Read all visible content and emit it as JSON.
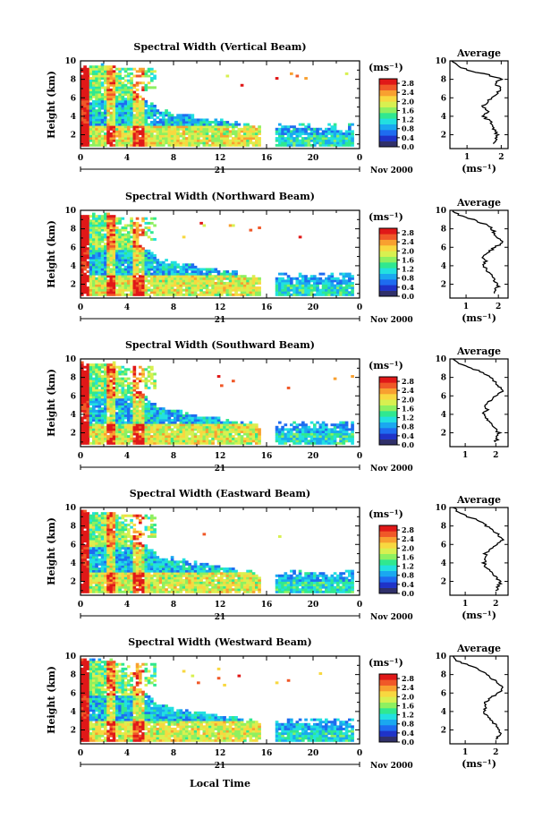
{
  "chart_data": [
    {
      "type": "heatmap",
      "title": "Spectral Width (Vertical Beam)",
      "ylabel": "Height (km)",
      "xticks": [
        "0",
        "4",
        "8",
        "12",
        "16",
        "20",
        "0"
      ],
      "yticks": [
        "2",
        "4",
        "6",
        "8",
        "10"
      ],
      "xlim": [
        0,
        24
      ],
      "ylim": [
        0.5,
        10
      ],
      "date_day": "21",
      "date_month": "Nov 2000",
      "colorbar": {
        "unit": "(ms⁻¹)",
        "ticks": [
          "2.8",
          "2.4",
          "2.0",
          "1.6",
          "1.2",
          "0.8",
          "0.4",
          "0.0"
        ],
        "range": [
          0,
          3.0
        ]
      },
      "avg_panel": {
        "title": "Average",
        "xlabel": "(ms⁻¹)",
        "xticks": [
          "1",
          "2"
        ],
        "xlim": [
          0.5,
          2.2
        ],
        "profile": [
          [
            1.8,
            1.0
          ],
          [
            1.85,
            1.5
          ],
          [
            1.9,
            2.0
          ],
          [
            1.8,
            2.5
          ],
          [
            1.75,
            3.0
          ],
          [
            1.65,
            3.5
          ],
          [
            1.5,
            4.0
          ],
          [
            1.6,
            4.5
          ],
          [
            1.45,
            5.0
          ],
          [
            1.6,
            5.5
          ],
          [
            1.7,
            6.0
          ],
          [
            1.9,
            6.5
          ],
          [
            2.0,
            7.0
          ],
          [
            1.8,
            7.5
          ],
          [
            2.0,
            8.0
          ],
          [
            1.6,
            8.5
          ],
          [
            1.0,
            9.0
          ],
          [
            0.7,
            9.5
          ],
          [
            0.55,
            10.0
          ]
        ]
      },
      "data_hours": [
        0,
        23.5
      ],
      "gap_hours": [
        15.4,
        16.7
      ]
    },
    {
      "type": "heatmap",
      "title": "Spectral Width (Northward Beam)",
      "ylabel": "Height (km)",
      "xticks": [
        "0",
        "4",
        "8",
        "12",
        "16",
        "20",
        "0"
      ],
      "yticks": [
        "2",
        "4",
        "6",
        "8",
        "10"
      ],
      "xlim": [
        0,
        24
      ],
      "ylim": [
        0.5,
        10
      ],
      "date_day": "21",
      "date_month": "Nov 2000",
      "colorbar": {
        "unit": "(ms⁻¹)",
        "ticks": [
          "2.8",
          "2.4",
          "2.0",
          "1.6",
          "1.2",
          "0.8",
          "0.4",
          "0.0"
        ],
        "range": [
          0,
          3.0
        ]
      },
      "avg_panel": {
        "title": "Average",
        "xlabel": "(ms⁻¹)",
        "xticks": [
          "1",
          "2"
        ],
        "xlim": [
          0.5,
          2.3
        ],
        "profile": [
          [
            1.9,
            1.0
          ],
          [
            1.95,
            1.5
          ],
          [
            2.0,
            2.0
          ],
          [
            1.85,
            2.5
          ],
          [
            1.8,
            3.0
          ],
          [
            1.65,
            3.5
          ],
          [
            1.55,
            4.0
          ],
          [
            1.6,
            4.5
          ],
          [
            1.5,
            5.0
          ],
          [
            1.7,
            5.5
          ],
          [
            1.9,
            6.0
          ],
          [
            2.1,
            6.5
          ],
          [
            2.0,
            7.0
          ],
          [
            1.9,
            7.5
          ],
          [
            1.8,
            8.0
          ],
          [
            1.6,
            8.5
          ],
          [
            1.2,
            9.0
          ],
          [
            0.8,
            9.5
          ],
          [
            0.6,
            10.0
          ]
        ]
      },
      "data_hours": [
        0,
        23.5
      ],
      "gap_hours": [
        15.4,
        16.7
      ]
    },
    {
      "type": "heatmap",
      "title": "Spectral Width (Southward Beam)",
      "ylabel": "Height (km)",
      "xticks": [
        "0",
        "4",
        "8",
        "12",
        "16",
        "20",
        "0"
      ],
      "yticks": [
        "2",
        "4",
        "6",
        "8",
        "10"
      ],
      "xlim": [
        0,
        24
      ],
      "ylim": [
        0.5,
        10
      ],
      "date_day": "21",
      "date_month": "Nov 2000",
      "colorbar": {
        "unit": "(ms⁻¹)",
        "ticks": [
          "2.8",
          "2.4",
          "2.0",
          "1.6",
          "1.2",
          "0.8",
          "0.4",
          "0.0"
        ],
        "range": [
          0,
          3.0
        ]
      },
      "avg_panel": {
        "title": "Average",
        "xlabel": "",
        "xticks": [
          "1",
          "2"
        ],
        "xlim": [
          0.5,
          2.4
        ],
        "profile": [
          [
            2.0,
            1.0
          ],
          [
            2.05,
            1.5
          ],
          [
            2.1,
            2.0
          ],
          [
            1.95,
            2.5
          ],
          [
            1.85,
            3.0
          ],
          [
            1.7,
            3.5
          ],
          [
            1.6,
            4.0
          ],
          [
            1.7,
            4.5
          ],
          [
            1.6,
            5.0
          ],
          [
            1.8,
            5.5
          ],
          [
            2.0,
            6.0
          ],
          [
            2.2,
            6.5
          ],
          [
            2.1,
            7.0
          ],
          [
            1.95,
            7.5
          ],
          [
            1.8,
            8.0
          ],
          [
            1.6,
            8.5
          ],
          [
            1.2,
            9.0
          ],
          [
            0.8,
            9.5
          ],
          [
            0.6,
            10.0
          ]
        ]
      },
      "data_hours": [
        0,
        23.5
      ],
      "gap_hours": [
        15.4,
        16.7
      ]
    },
    {
      "type": "heatmap",
      "title": "Spectral Width (Eastward Beam)",
      "ylabel": "Height (km)",
      "xticks": [
        "0",
        "4",
        "8",
        "12",
        "16",
        "20",
        "0"
      ],
      "yticks": [
        "2",
        "4",
        "6",
        "8",
        "10"
      ],
      "xlim": [
        0,
        24
      ],
      "ylim": [
        0.5,
        10
      ],
      "date_day": "21",
      "date_month": "Nov 2000",
      "colorbar": {
        "unit": "(ms⁻¹)",
        "ticks": [
          "2.8",
          "2.4",
          "2.0",
          "1.6",
          "1.2",
          "0.8",
          "0.4",
          "0.0"
        ],
        "range": [
          0,
          3.0
        ]
      },
      "avg_panel": {
        "title": "Average",
        "xlabel": "(ms⁻¹)",
        "xticks": [
          "1",
          "2"
        ],
        "xlim": [
          0.5,
          2.4
        ],
        "profile": [
          [
            2.0,
            1.0
          ],
          [
            2.1,
            1.5
          ],
          [
            2.15,
            2.0
          ],
          [
            2.0,
            2.5
          ],
          [
            1.85,
            3.0
          ],
          [
            1.7,
            3.5
          ],
          [
            1.6,
            4.0
          ],
          [
            1.7,
            4.5
          ],
          [
            1.65,
            5.0
          ],
          [
            1.85,
            5.5
          ],
          [
            2.05,
            6.0
          ],
          [
            2.2,
            6.5
          ],
          [
            2.1,
            7.0
          ],
          [
            1.9,
            7.5
          ],
          [
            1.7,
            8.0
          ],
          [
            1.5,
            8.5
          ],
          [
            1.1,
            9.0
          ],
          [
            0.75,
            9.5
          ],
          [
            0.6,
            10.0
          ]
        ]
      },
      "data_hours": [
        0,
        23.5
      ],
      "gap_hours": [
        15.4,
        16.7
      ]
    },
    {
      "type": "heatmap",
      "title": "Spectral Width (Westward Beam)",
      "ylabel": "Height (km)",
      "xticks": [
        "0",
        "4",
        "8",
        "12",
        "16",
        "20",
        "0"
      ],
      "yticks": [
        "2",
        "4",
        "6",
        "8",
        "10"
      ],
      "xlim": [
        0,
        24
      ],
      "ylim": [
        0.5,
        10
      ],
      "date_day": "21",
      "date_month": "Nov 2000",
      "colorbar": {
        "unit": "(ms⁻¹)",
        "ticks": [
          "2.8",
          "2.4",
          "2.0",
          "1.6",
          "1.2",
          "0.8",
          "0.4",
          "0.0"
        ],
        "range": [
          0,
          3.0
        ]
      },
      "avg_panel": {
        "title": "Average",
        "xlabel": "(ms⁻¹)",
        "xticks": [
          "1",
          "2"
        ],
        "xlim": [
          0.5,
          2.4
        ],
        "profile": [
          [
            2.0,
            1.0
          ],
          [
            2.1,
            1.5
          ],
          [
            2.15,
            2.0
          ],
          [
            2.0,
            2.5
          ],
          [
            1.85,
            3.0
          ],
          [
            1.7,
            3.5
          ],
          [
            1.6,
            4.0
          ],
          [
            1.7,
            4.5
          ],
          [
            1.65,
            5.0
          ],
          [
            1.85,
            5.5
          ],
          [
            2.05,
            6.0
          ],
          [
            2.25,
            6.5
          ],
          [
            2.1,
            7.0
          ],
          [
            1.9,
            7.5
          ],
          [
            1.7,
            8.0
          ],
          [
            1.5,
            8.5
          ],
          [
            1.1,
            9.0
          ],
          [
            0.75,
            9.5
          ],
          [
            0.6,
            10.0
          ]
        ]
      },
      "data_hours": [
        0,
        23.5
      ],
      "gap_hours": [
        15.4,
        16.7
      ]
    }
  ],
  "bottom_xlabel": "Local Time",
  "colors": {
    "palette": [
      "#30306a",
      "#1f33c8",
      "#1e6cf0",
      "#1aa8f0",
      "#22e0e0",
      "#30e890",
      "#8ef060",
      "#d8f050",
      "#f8d840",
      "#f8a030",
      "#f05828",
      "#e01818"
    ]
  }
}
